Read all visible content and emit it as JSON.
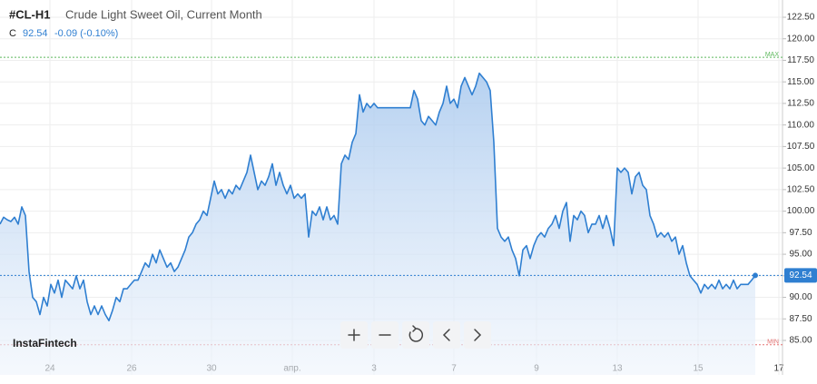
{
  "chart_data": {
    "type": "area",
    "symbol": "#CL-H1",
    "title": "Crude Light Sweet Oil, Current Month",
    "close_label": "C",
    "close": 92.54,
    "change": "-0.09 (-0.10%)",
    "watermark": "InstaFintech",
    "color": "#2f7fd1",
    "grid": true,
    "series": [
      {
        "values": [
          98.5,
          99.3,
          99.0,
          98.8,
          99.3,
          98.5,
          100.5,
          99.5,
          93.0,
          90.0,
          89.5,
          88.0,
          90.0,
          89.0,
          91.5,
          90.5,
          92.0,
          90.0,
          92.0,
          91.5,
          91.0,
          92.5,
          91.0,
          92.0,
          89.5,
          88.0,
          89.0,
          88.0,
          89.0,
          88.0,
          87.3,
          88.5,
          90.0,
          89.5,
          91.0,
          91.0,
          91.5,
          92.0,
          92.0,
          93.0,
          94.0,
          93.5,
          95.0,
          94.0,
          95.5,
          94.5,
          93.5,
          94.0,
          93.0,
          93.5,
          94.5,
          95.5,
          97.0,
          97.5,
          98.5,
          99.0,
          100.0,
          99.5,
          101.5,
          103.5,
          102.0,
          102.5,
          101.5,
          102.5,
          102.0,
          103.0,
          102.5,
          103.5,
          104.5,
          106.5,
          104.5,
          102.5,
          103.5,
          103.0,
          104.0,
          105.5,
          103.0,
          104.5,
          103.0,
          102.0,
          103.0,
          101.5,
          102.0,
          101.5,
          102.0,
          97.0,
          100.0,
          99.5,
          100.5,
          99.0,
          100.5,
          99.0,
          99.5,
          98.5,
          105.5,
          106.5,
          106.0,
          108.0,
          109.0,
          113.5,
          111.5,
          112.5,
          112.0,
          112.5,
          112.0,
          112.0,
          112.0,
          112.0,
          112.0,
          112.0,
          112.0,
          112.0,
          112.0,
          112.0,
          114.0,
          113.0,
          110.5,
          110.0,
          111.0,
          110.5,
          110.0,
          111.5,
          112.5,
          114.5,
          112.5,
          113.0,
          112.0,
          114.5,
          115.5,
          114.5,
          113.5,
          114.5,
          116.0,
          115.5,
          115.0,
          114.0,
          108.0,
          98.0,
          97.0,
          96.5,
          97.0,
          95.5,
          94.5,
          92.5,
          95.5,
          96.0,
          94.5,
          96.0,
          97.0,
          97.5,
          97.0,
          98.0,
          98.5,
          99.5,
          98.0,
          100.0,
          101.0,
          96.5,
          99.5,
          99.0,
          100.0,
          99.5,
          97.5,
          98.5,
          98.5,
          99.5,
          98.0,
          99.5,
          98.0,
          96.0,
          105.0,
          104.5,
          105.0,
          104.5,
          102.0,
          104.0,
          104.5,
          103.0,
          102.5,
          99.5,
          98.5,
          97.0,
          97.5,
          97.0,
          97.5,
          96.5,
          97.0,
          95.0,
          96.0,
          94.0,
          92.5,
          92.0,
          91.5,
          90.5,
          91.5,
          91.0,
          91.5,
          91.0,
          92.0,
          91.0,
          91.5,
          91.0,
          92.0,
          91.0,
          91.5,
          91.5,
          91.5,
          92.0,
          92.54
        ]
      }
    ],
    "xlim": [
      0,
      215.5
    ],
    "xticks": [
      {
        "value": 13.75,
        "label": "24"
      },
      {
        "value": 36.25,
        "label": "26"
      },
      {
        "value": 58.25,
        "label": "30"
      },
      {
        "value": 80.5,
        "label": "апр."
      },
      {
        "value": 103,
        "label": "3"
      },
      {
        "value": 125,
        "label": "7"
      },
      {
        "value": 147.75,
        "label": "9"
      },
      {
        "value": 170,
        "label": "13"
      },
      {
        "value": 192.25,
        "label": "15"
      },
      {
        "value": 214.5,
        "label": "17"
      }
    ],
    "ylim": [
      81,
      124.5
    ],
    "yticks": [
      {
        "value": 85,
        "label": "85.00"
      },
      {
        "value": 87.5,
        "label": "87.50"
      },
      {
        "value": 90,
        "label": "90.00"
      },
      {
        "value": 92.5,
        "label": "92.50"
      },
      {
        "value": 95,
        "label": "95.00"
      },
      {
        "value": 97.5,
        "label": "97.50"
      },
      {
        "value": 100,
        "label": "100.00"
      },
      {
        "value": 102.5,
        "label": "102.50"
      },
      {
        "value": 105,
        "label": "105.00"
      },
      {
        "value": 107.5,
        "label": "107.50"
      },
      {
        "value": 110,
        "label": "110.00"
      },
      {
        "value": 112.5,
        "label": "112.50"
      },
      {
        "value": 115,
        "label": "115.00"
      },
      {
        "value": 117.5,
        "label": "117.50"
      },
      {
        "value": 120,
        "label": "120.00"
      },
      {
        "value": 122.5,
        "label": "122.50"
      }
    ],
    "reference_lines": [
      {
        "label": "MAX",
        "value": 117.85,
        "color": "#5cb85c"
      },
      {
        "label": "MIN",
        "value": 84.5,
        "color": "#e57373"
      }
    ]
  }
}
